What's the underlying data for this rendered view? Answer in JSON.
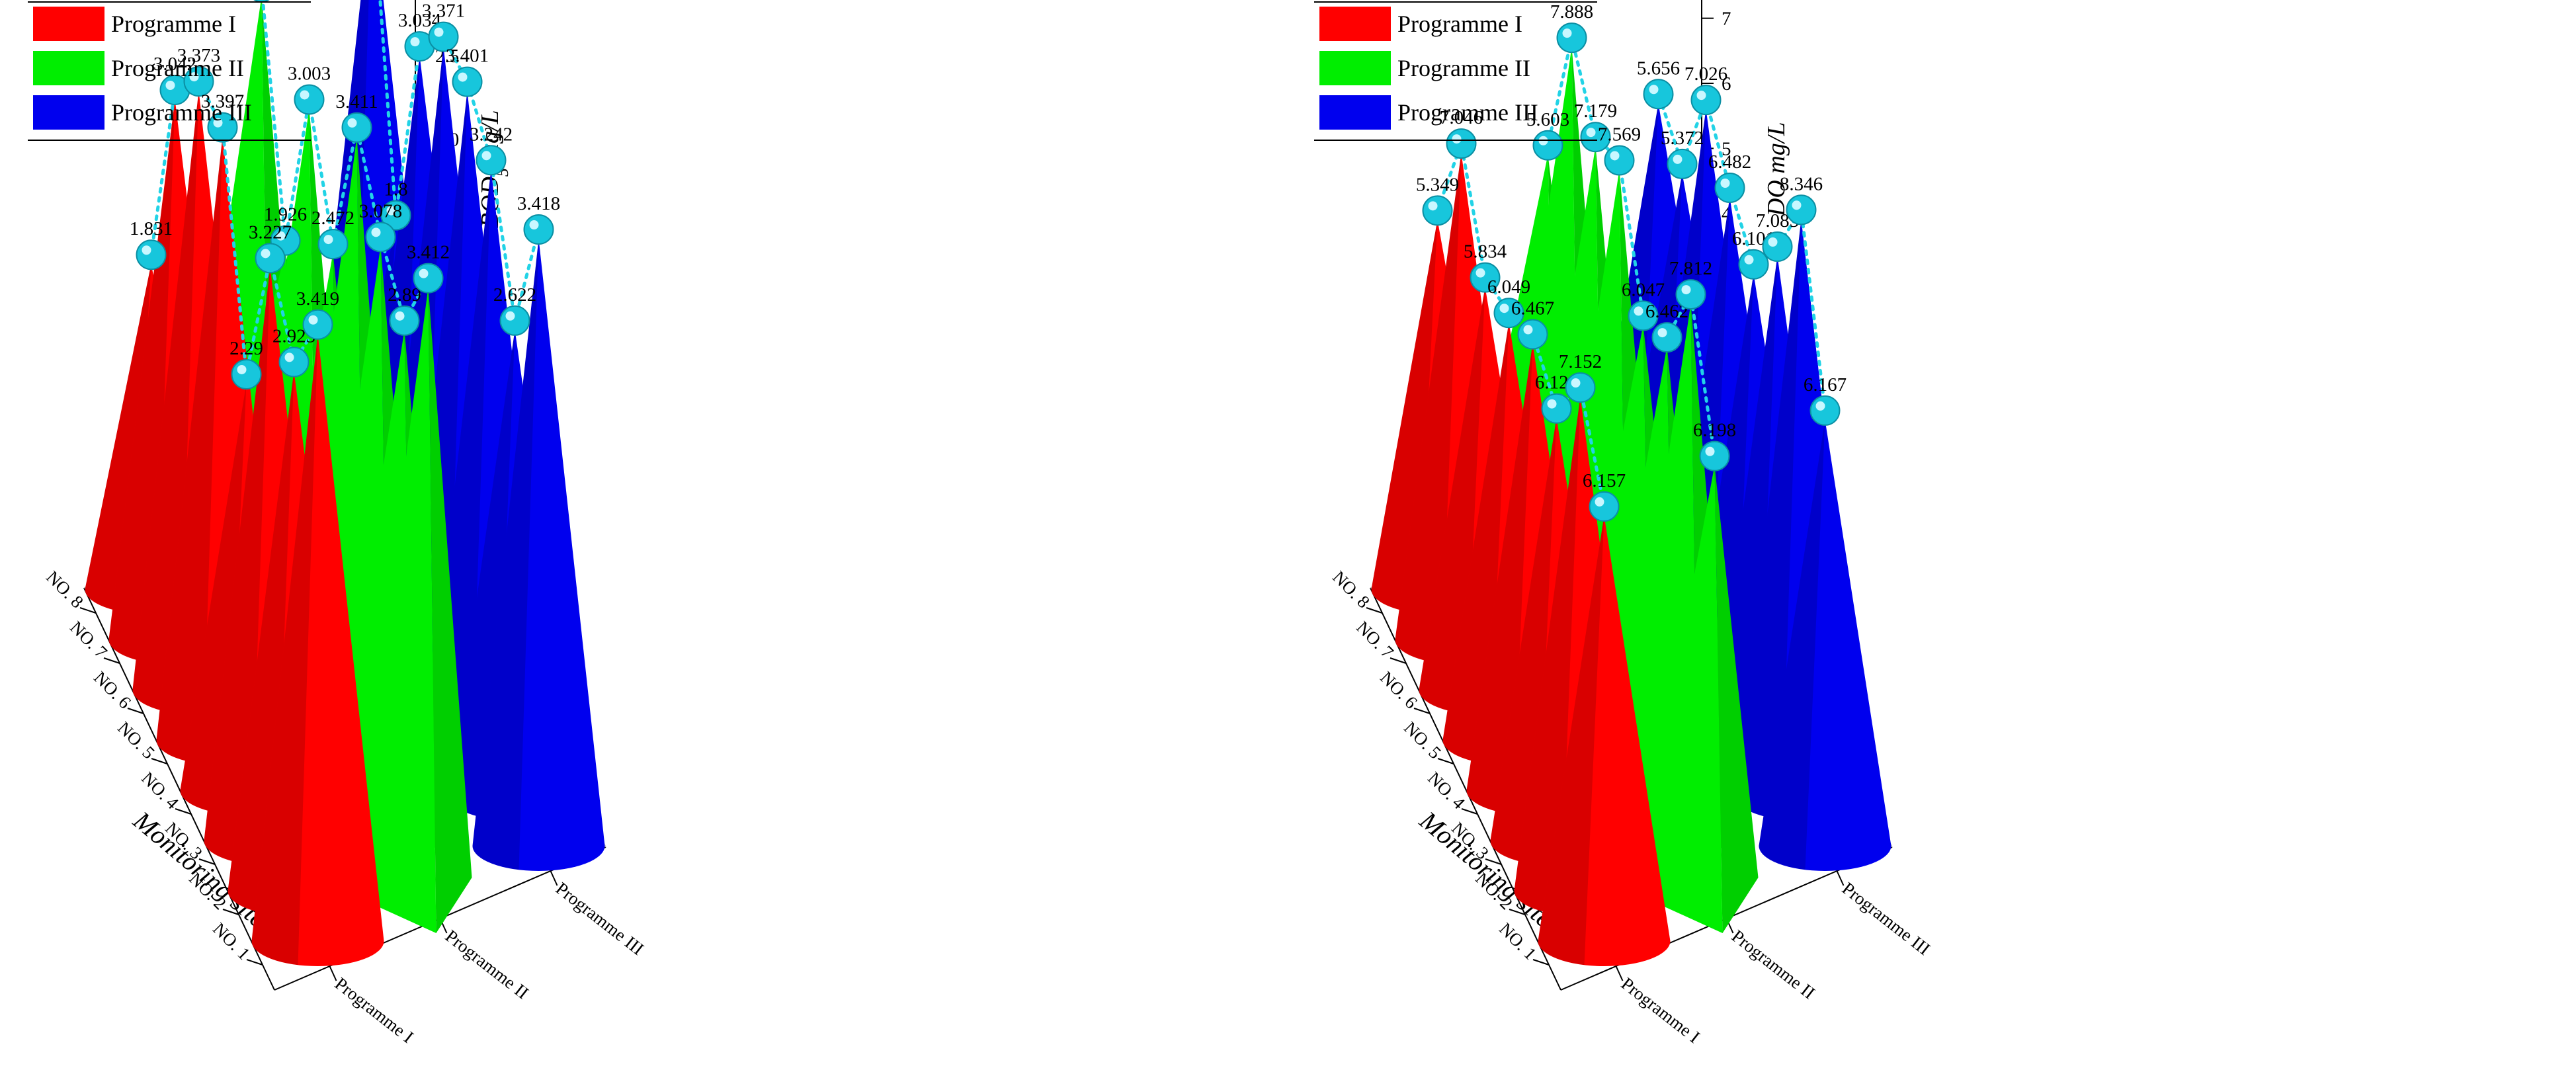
{
  "chart_data": [
    {
      "type": "bar3d-cone",
      "zlabel": "BOD5 mg/L",
      "zlabel_main": "BOD",
      "zlabel_sub": "5",
      "zlabel_unit": " mg/L",
      "ylabel": "Monitoring sites",
      "zlim": [
        0,
        3.5
      ],
      "zticks": [
        "0.0",
        "0.5",
        "1.0",
        "1.5",
        "2.0",
        "2.5",
        "3.0",
        "3.5"
      ],
      "sites": [
        "NO. 1",
        "NO. 2",
        "NO. 3",
        "NO. 4",
        "NO. 5",
        "NO. 6",
        "NO. 7",
        "NO. 8"
      ],
      "programmes": [
        "Programme I",
        "Programme II",
        "Programme III"
      ],
      "series": [
        {
          "name": "Programme I",
          "color": "#ff0000",
          "shape": "cone",
          "values": [
            3.419,
            2.925,
            3.227,
            2.29,
            3.397,
            3.373,
            3.042,
            1.831
          ],
          "labels": [
            "3.419",
            "2.925",
            "3.227",
            "2.29",
            "3.397",
            "3.373",
            "3.042",
            "1.831"
          ]
        },
        {
          "name": "Programme II",
          "color": "#00ee00",
          "shape": "pyramid",
          "values": [
            3.412,
            2.89,
            3.078,
            3.411,
            2.472,
            3.003,
            1.926,
            3.07
          ],
          "labels": [
            "3.412",
            "2.89",
            "3.078",
            "3.411",
            "2.472",
            "3.003",
            "1.926",
            "3.07"
          ]
        },
        {
          "name": "Programme III",
          "color": "#0000ee",
          "shape": "cone",
          "values": [
            3.418,
            2.622,
            3.242,
            3.401,
            3.371,
            3.034,
            1.8,
            3.359
          ],
          "labels": [
            "3.418",
            "2.622",
            "3.242",
            "3.401",
            "3.371",
            "3.034",
            "1.8",
            "3.359"
          ]
        }
      ]
    },
    {
      "type": "bar3d-cone",
      "zlabel": "DO mg/L",
      "zlabel_main": "DO",
      "zlabel_sub": "",
      "zlabel_unit": " mg/L",
      "ylabel": "Monitoring sites",
      "zlim": [
        0,
        9
      ],
      "zticks": [
        "0",
        "1",
        "2",
        "3",
        "4",
        "5",
        "6",
        "7",
        "8",
        "9"
      ],
      "sites": [
        "NO. 1",
        "NO. 2",
        "NO. 3",
        "NO. 4",
        "NO. 5",
        "NO. 6",
        "NO. 7",
        "NO. 8"
      ],
      "programmes": [
        "Programme I",
        "Programme II",
        "Programme III"
      ],
      "series": [
        {
          "name": "Programme I",
          "color": "#ff0000",
          "shape": "cone",
          "values": [
            6.157,
            7.152,
            6.121,
            6.467,
            6.049,
            5.834,
            7.046,
            5.349
          ],
          "labels": [
            "6.157",
            "7.152",
            "6.121",
            "6.467",
            "6.049",
            "5.834",
            "7.046",
            "5.349"
          ]
        },
        {
          "name": "Programme II",
          "color": "#00ee00",
          "shape": "pyramid",
          "values": [
            6.198,
            7.812,
            6.462,
            6.047,
            7.569,
            7.179,
            7.888,
            5.603
          ],
          "labels": [
            "6.198",
            "7.812",
            "6.462",
            "6.047",
            "7.569",
            "7.179",
            "7.888",
            "5.603"
          ]
        },
        {
          "name": "Programme III",
          "color": "#0000ee",
          "shape": "cone",
          "values": [
            6.167,
            8.346,
            7.085,
            6.101,
            6.482,
            7.026,
            5.372,
            5.656
          ],
          "labels": [
            "6.167",
            "8.346",
            "7.085",
            "6.101",
            "6.482",
            "7.026",
            "5.372",
            "5.656"
          ]
        }
      ]
    }
  ]
}
